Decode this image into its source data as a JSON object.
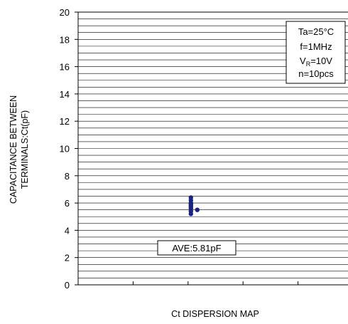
{
  "chart_data": {
    "type": "scatter",
    "xlabel": "Ct DISPERSION MAP",
    "ylabel_lines": [
      "CAPACITANCE BETWEEN",
      "TERMINALS:Ct(pF)"
    ],
    "ylim": [
      0,
      20
    ],
    "y_ticks": [
      "0",
      "2",
      "4",
      "6",
      "8",
      "10",
      "12",
      "14",
      "16",
      "18",
      "20"
    ],
    "minor_grid_step": 0.5,
    "x_divisions": 5,
    "grid": true,
    "conditions": {
      "line1": "Ta=25°C",
      "line2": "f=1MHz",
      "line3_main": "V",
      "line3_sub": "R",
      "line3_rest": "=10V",
      "line4": "n=10pcs"
    },
    "average_label": "AVE:5.81pF",
    "points": [
      {
        "x": 0,
        "y": 6.4
      },
      {
        "x": 0,
        "y": 6.2
      },
      {
        "x": 0,
        "y": 6.0
      },
      {
        "x": 0,
        "y": 5.9
      },
      {
        "x": 0,
        "y": 5.8
      },
      {
        "x": 0,
        "y": 5.7
      },
      {
        "x": 0,
        "y": 5.6
      },
      {
        "x": 0,
        "y": 5.4
      },
      {
        "x": 0,
        "y": 5.2
      },
      {
        "x": 1,
        "y": 5.5
      }
    ],
    "point_color": "#1a237e"
  }
}
